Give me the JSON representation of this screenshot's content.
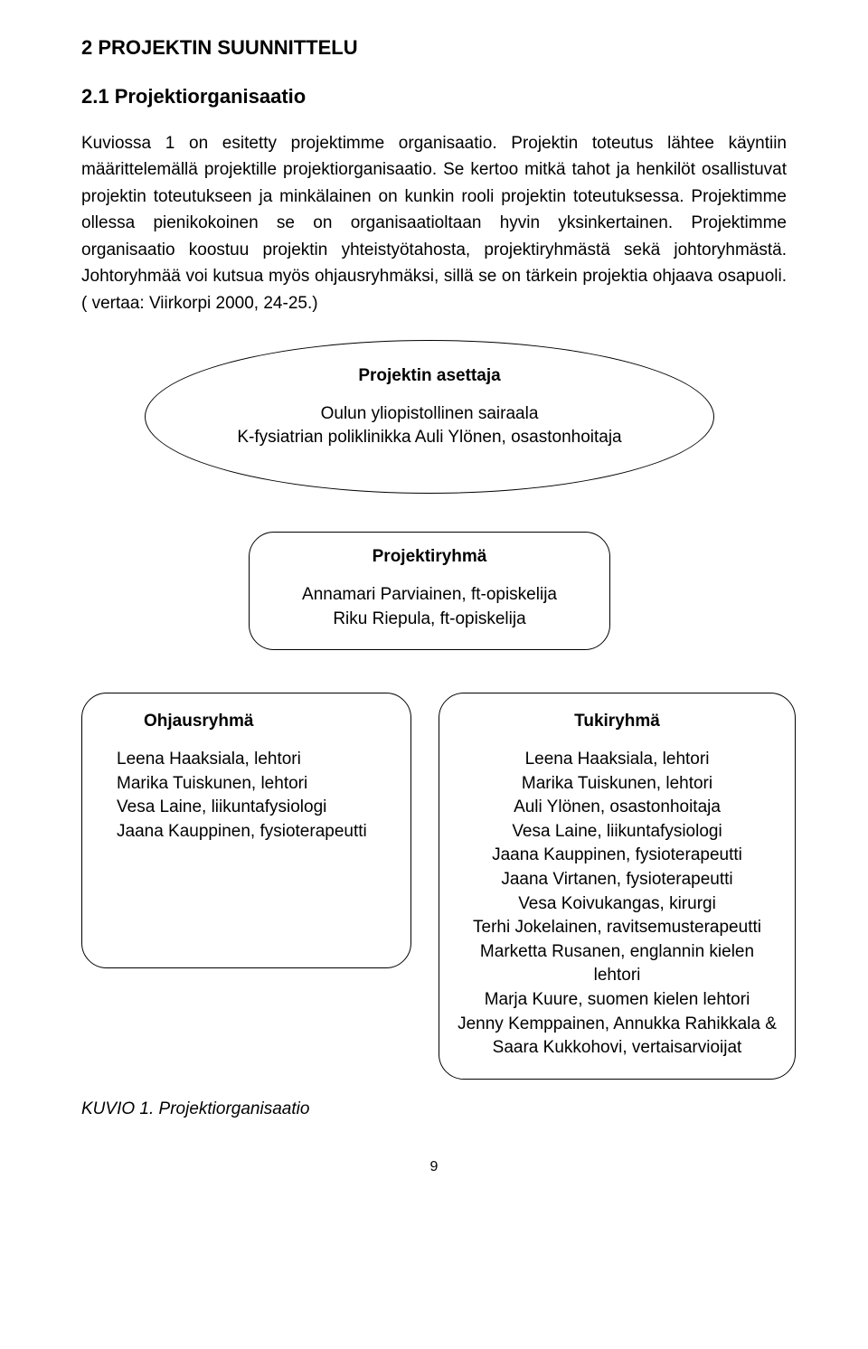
{
  "heading_h1": "2 PROJEKTIN SUUNNITTELU",
  "heading_h2": "2.1 Projektiorganisaatio",
  "paragraph": "Kuviossa 1 on esitetty projektimme organisaatio. Projektin toteutus lähtee käyntiin määrittelemällä projektille projektiorganisaatio. Se kertoo mitkä tahot ja henkilöt osallistuvat projektin toteutukseen ja minkälainen on kunkin rooli projektin toteutuksessa. Projektimme ollessa pienikokoinen se on organisaatioltaan hyvin yksinkertainen. Projektimme organisaatio koostuu projektin yhteistyötahosta, projektiryhmästä sekä johtoryhmästä. Johtoryhmää voi kutsua myös ohjausryhmäksi, sillä se on tärkein projektia ohjaava osapuoli. ( vertaa: Viirkorpi 2000, 24-25.)",
  "diagram": {
    "asettaja": {
      "title": "Projektin asettaja",
      "line1": "Oulun yliopistollinen sairaala",
      "line2": "K-fysiatrian poliklinikka Auli Ylönen, osastonhoitaja"
    },
    "projektiryhma": {
      "title": "Projektiryhmä",
      "line1": "Annamari Parviainen, ft-opiskelija",
      "line2": "Riku Riepula, ft-opiskelija"
    },
    "ohjausryhma": {
      "title": "Ohjausryhmä",
      "line1": "Leena Haaksiala, lehtori",
      "line2": "Marika Tuiskunen, lehtori",
      "line3": "Vesa Laine, liikuntafysiologi",
      "line4": "Jaana Kauppinen, fysioterapeutti"
    },
    "tukiryhma": {
      "title": "Tukiryhmä",
      "line1": "Leena Haaksiala, lehtori",
      "line2": "Marika Tuiskunen, lehtori",
      "line3": "Auli Ylönen, osastonhoitaja",
      "line4": "Vesa Laine, liikuntafysiologi",
      "line5": "Jaana Kauppinen, fysioterapeutti",
      "line6": "Jaana Virtanen, fysioterapeutti",
      "line7": "Vesa Koivukangas, kirurgi",
      "line8": "Terhi Jokelainen, ravitsemusterapeutti",
      "line9": "Marketta Rusanen, englannin kielen lehtori",
      "line10": "Marja Kuure, suomen kielen lehtori",
      "line11": "Jenny Kemppainen, Annukka Rahikkala &",
      "line12": "Saara Kukkohovi, vertaisarvioijat"
    }
  },
  "footer_label": "KUVIO 1. Projektiorganisaatio",
  "page_number": "9"
}
